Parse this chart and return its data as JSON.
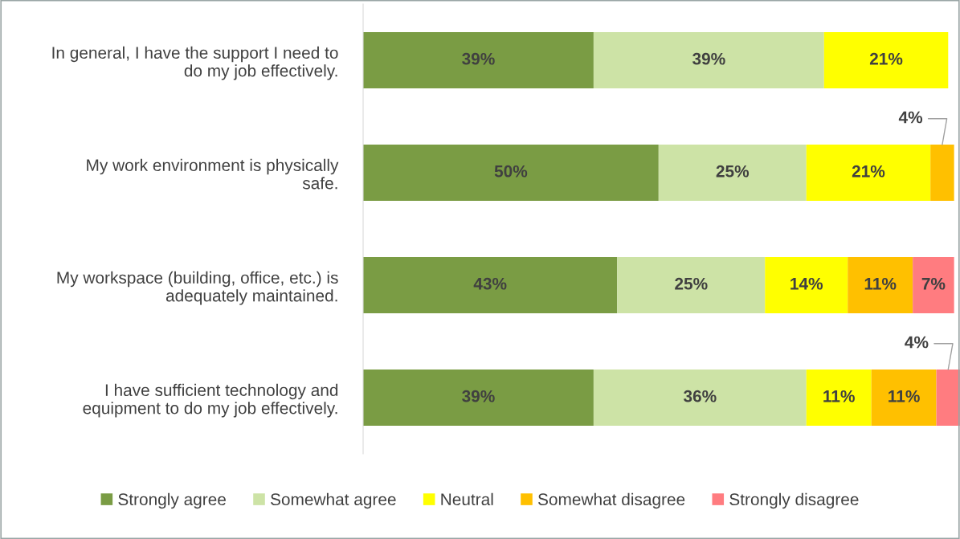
{
  "chart_data": {
    "type": "bar",
    "orientation": "horizontal",
    "stacked": true,
    "legend": "bottom",
    "categories": [
      "In general, I have the support I need to\ndo my job effectively.",
      "My work environment is physically\nsafe.",
      "My workspace (building, office, etc.) is\nadequately maintained.",
      "I have sufficient technology and\nequipment to do my job effectively."
    ],
    "series": [
      {
        "name": "Strongly agree",
        "color": "#7a9c44",
        "values": [
          39,
          50,
          43,
          39
        ],
        "value_labels": [
          "39%",
          "50%",
          "43%",
          "39%"
        ]
      },
      {
        "name": "Somewhat agree",
        "color": "#cde3a6",
        "values": [
          39,
          25,
          25,
          36
        ],
        "value_labels": [
          "39%",
          "25%",
          "25%",
          "36%"
        ]
      },
      {
        "name": "Neutral",
        "color": "#ffff00",
        "values": [
          21,
          21,
          14,
          11
        ],
        "value_labels": [
          "21%",
          "21%",
          "14%",
          "11%"
        ]
      },
      {
        "name": "Somewhat disagree",
        "color": "#ffc000",
        "values": [
          null,
          4,
          11,
          11
        ],
        "value_labels": [
          null,
          "4%",
          "11%",
          "11%"
        ]
      },
      {
        "name": "Strongly disagree",
        "color": "#ff7c80",
        "values": [
          null,
          null,
          7,
          4
        ],
        "value_labels": [
          null,
          null,
          "7%",
          "4%"
        ]
      }
    ]
  }
}
